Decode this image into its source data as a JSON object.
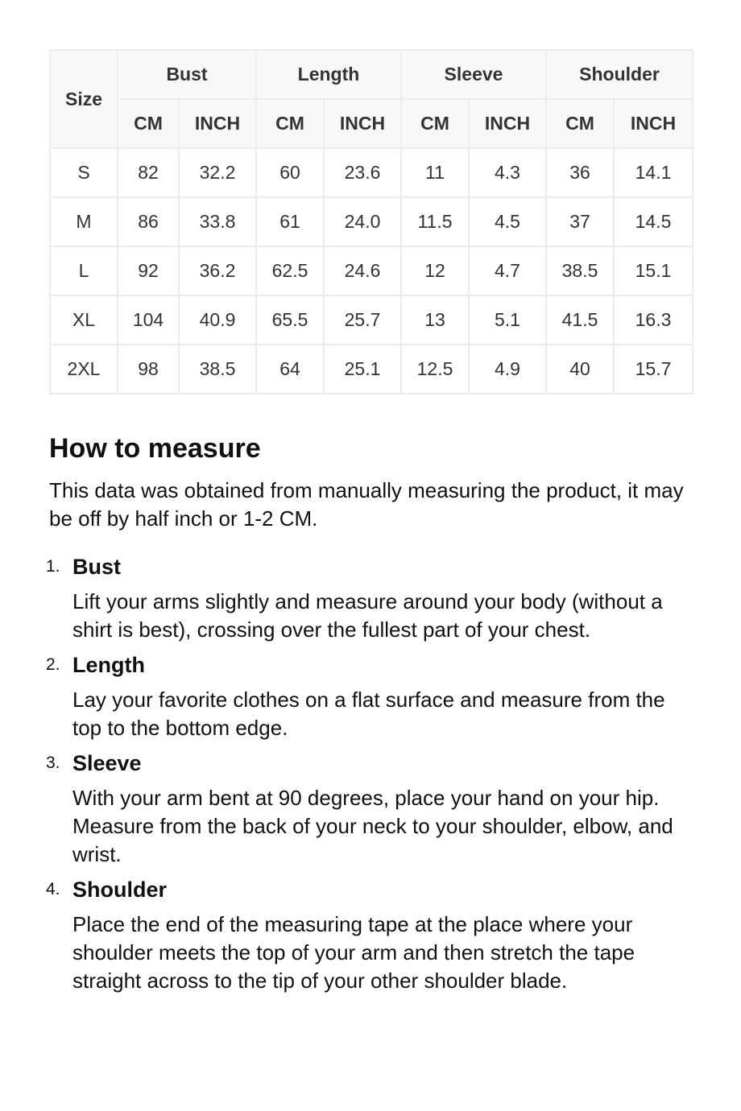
{
  "table": {
    "size_header": "Size",
    "groups": [
      "Bust",
      "Length",
      "Sleeve",
      "Shoulder"
    ],
    "units": [
      "CM",
      "INCH",
      "CM",
      "INCH",
      "CM",
      "INCH",
      "CM",
      "INCH"
    ],
    "rows": [
      [
        "S",
        "82",
        "32.2",
        "60",
        "23.6",
        "11",
        "4.3",
        "36",
        "14.1"
      ],
      [
        "M",
        "86",
        "33.8",
        "61",
        "24.0",
        "11.5",
        "4.5",
        "37",
        "14.5"
      ],
      [
        "L",
        "92",
        "36.2",
        "62.5",
        "24.6",
        "12",
        "4.7",
        "38.5",
        "15.1"
      ],
      [
        "XL",
        "104",
        "40.9",
        "65.5",
        "25.7",
        "13",
        "5.1",
        "41.5",
        "16.3"
      ],
      [
        "2XL",
        "98",
        "38.5",
        "64",
        "25.1",
        "12.5",
        "4.9",
        "40",
        "15.7"
      ]
    ]
  },
  "howto": {
    "title": "How to measure",
    "intro": "This data was obtained from manually measuring the product, it may be off by half inch or 1-2 CM.",
    "items": [
      {
        "num": "1.",
        "title": "Bust",
        "desc": "Lift your arms slightly and measure around your body (without a shirt is best), crossing over the fullest part of your chest."
      },
      {
        "num": "2.",
        "title": "Length",
        "desc": "Lay your favorite clothes on a flat surface and measure from the top to the bottom edge."
      },
      {
        "num": "3.",
        "title": "Sleeve",
        "desc": "With your arm bent at 90 degrees, place your hand on your hip. Measure from the back of your neck to your shoulder, elbow, and wrist."
      },
      {
        "num": "4.",
        "title": "Shoulder",
        "desc": "Place the end of the measuring tape at the place where your shoulder meets the top of your arm and then stretch the tape straight across to the tip of your other shoulder blade."
      }
    ]
  }
}
